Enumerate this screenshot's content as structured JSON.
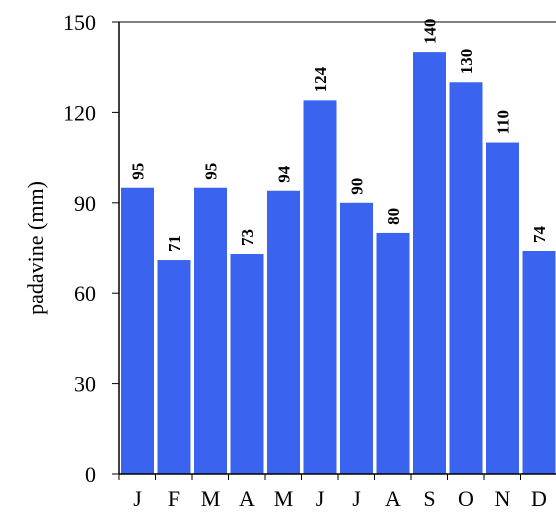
{
  "chart_data": {
    "type": "bar",
    "title": "",
    "xlabel": "",
    "ylabel": "padavine (mm)",
    "categories": [
      "J",
      "F",
      "M",
      "A",
      "M",
      "J",
      "J",
      "A",
      "S",
      "O",
      "N",
      "D"
    ],
    "values": [
      95,
      71,
      95,
      73,
      94,
      124,
      90,
      80,
      140,
      130,
      110,
      74
    ],
    "ylim": [
      0,
      150
    ],
    "yticks": [
      0,
      30,
      60,
      90,
      120,
      150
    ],
    "grid": false,
    "bar_color": "#3a63f0",
    "data_labels": [
      "95",
      "71",
      "95",
      "73",
      "94",
      "124",
      "90",
      "80",
      "140",
      "130",
      "110",
      "74"
    ]
  }
}
